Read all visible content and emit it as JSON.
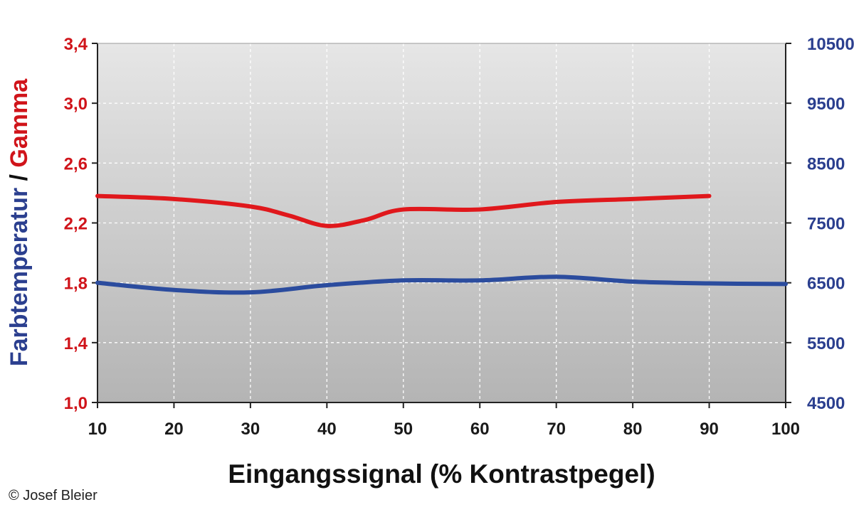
{
  "chart_data": {
    "type": "line",
    "xlabel": "Eingangssignal (% Kontrastpegel)",
    "ylabel_part1": "Farbtemperatur",
    "ylabel_sep": " / ",
    "ylabel_part2": "Gamma",
    "x_ticks": [
      "10",
      "20",
      "30",
      "40",
      "50",
      "60",
      "70",
      "80",
      "90",
      "100"
    ],
    "xlim": [
      10,
      100
    ],
    "y_left": {
      "lim": [
        1.0,
        3.4
      ],
      "ticks": [
        "1,0",
        "1,4",
        "1,8",
        "2,2",
        "2,6",
        "3,0",
        "3,4"
      ],
      "tick_values": [
        1.0,
        1.4,
        1.8,
        2.2,
        2.6,
        3.0,
        3.4
      ]
    },
    "y_right": {
      "lim": [
        4500,
        10500
      ],
      "ticks": [
        "4500",
        "5500",
        "6500",
        "7500",
        "8500",
        "9500",
        "10500"
      ],
      "tick_values": [
        4500,
        5500,
        6500,
        7500,
        8500,
        9500,
        10500
      ]
    },
    "series": [
      {
        "key": "gamma",
        "axis": "left",
        "color": "#e0181c",
        "x": [
          10,
          20,
          30,
          35,
          40,
          45,
          50,
          60,
          70,
          80,
          90
        ],
        "values": [
          2.38,
          2.36,
          2.31,
          2.25,
          2.18,
          2.22,
          2.29,
          2.29,
          2.34,
          2.36,
          2.38
        ]
      },
      {
        "key": "farbtemperatur",
        "axis": "right",
        "color": "#2b4c9e",
        "x": [
          10,
          20,
          30,
          40,
          50,
          60,
          70,
          80,
          90,
          100
        ],
        "values": [
          6500,
          6380,
          6340,
          6460,
          6540,
          6540,
          6600,
          6520,
          6490,
          6480
        ]
      }
    ],
    "grid": true
  },
  "colors": {
    "left_axis": "#d0141a",
    "right_axis": "#2b3f8f",
    "ylabel_part1": "#2b3f8f",
    "ylabel_part2": "#d0141a"
  },
  "credit": "© Josef Bleier"
}
